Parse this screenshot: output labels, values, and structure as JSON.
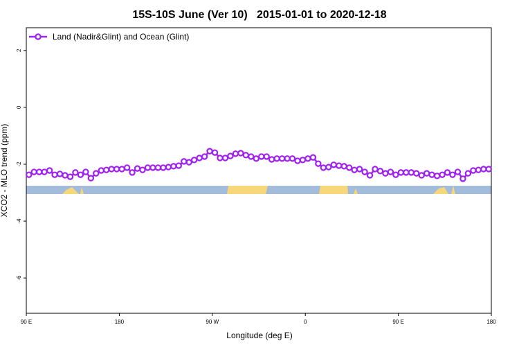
{
  "chart_data": {
    "type": "line",
    "title": "15S-10S June (Ver 10)   2015-01-01 to 2020-12-18",
    "x_label": "Longitude (deg E)",
    "y_label": "XCO2 - MLO trend (ppm)",
    "xlim": [
      90,
      540
    ],
    "xticks": [
      {
        "value": 90,
        "label": "90 E"
      },
      180,
      {
        "value": 270,
        "label": "90 W"
      },
      {
        "value": 360,
        "label": "0"
      },
      {
        "value": 450,
        "label": "90 E"
      },
      {
        "value": 540,
        "label": "180"
      }
    ],
    "ylim": [
      -7.24,
      2.8
    ],
    "yticks": [
      -6,
      -4,
      -2,
      0,
      2
    ],
    "legend": "top-left",
    "x": [
      92.5,
      97.5,
      102.5,
      107.5,
      112.5,
      117.5,
      122.5,
      127.5,
      132.5,
      137.5,
      142.5,
      147.5,
      152.5,
      157.5,
      162.5,
      167.5,
      172.5,
      177.5,
      182.5,
      187.5,
      192.5,
      197.5,
      202.5,
      207.5,
      212.5,
      217.5,
      222.5,
      227.5,
      232.5,
      237.5,
      242.5,
      247.5,
      252.5,
      257.5,
      262.5,
      267.5,
      272.5,
      277.5,
      282.5,
      287.5,
      292.5,
      297.5,
      302.5,
      307.5,
      312.5,
      317.5,
      322.5,
      327.5,
      332.5,
      337.5,
      342.5,
      347.5,
      352.5,
      357.5,
      362.5,
      367.5,
      372.5,
      377.5,
      382.5,
      387.5,
      392.5,
      397.5,
      402.5,
      407.5,
      412.5,
      417.5,
      422.5,
      427.5,
      432.5,
      437.5,
      442.5,
      447.5,
      452.5,
      457.5,
      462.5,
      467.5,
      472.5,
      477.5,
      482.5,
      487.5,
      492.5,
      497.5,
      502.5,
      507.5,
      512.5,
      517.5,
      522.5,
      527.5,
      532.5,
      537.5
    ],
    "series": [
      {
        "name": "Land (Nadir&Glint) and Ocean (Glint)",
        "color": "#a020f0",
        "values": [
          -2.37,
          -2.27,
          -2.27,
          -2.27,
          -2.22,
          -2.37,
          -2.34,
          -2.39,
          -2.44,
          -2.29,
          -2.37,
          -2.27,
          -2.49,
          -2.32,
          -2.22,
          -2.2,
          -2.17,
          -2.17,
          -2.17,
          -2.12,
          -2.29,
          -2.15,
          -2.2,
          -2.12,
          -2.12,
          -2.12,
          -2.12,
          -2.1,
          -2.07,
          -2.05,
          -1.9,
          -1.93,
          -1.85,
          -1.78,
          -1.73,
          -1.54,
          -1.59,
          -1.78,
          -1.78,
          -1.71,
          -1.63,
          -1.61,
          -1.68,
          -1.73,
          -1.8,
          -1.73,
          -1.73,
          -1.83,
          -1.8,
          -1.8,
          -1.8,
          -1.8,
          -1.88,
          -1.85,
          -1.8,
          -1.76,
          -1.98,
          -2.12,
          -2.1,
          -2.02,
          -2.05,
          -2.07,
          -2.12,
          -2.2,
          -2.17,
          -2.27,
          -2.39,
          -2.17,
          -2.24,
          -2.32,
          -2.27,
          -2.37,
          -2.29,
          -2.29,
          -2.29,
          -2.32,
          -2.39,
          -2.32,
          -2.37,
          -2.41,
          -2.37,
          -2.29,
          -2.37,
          -2.27,
          -2.51,
          -2.32,
          -2.22,
          -2.2,
          -2.17,
          -2.17
        ]
      }
    ]
  }
}
